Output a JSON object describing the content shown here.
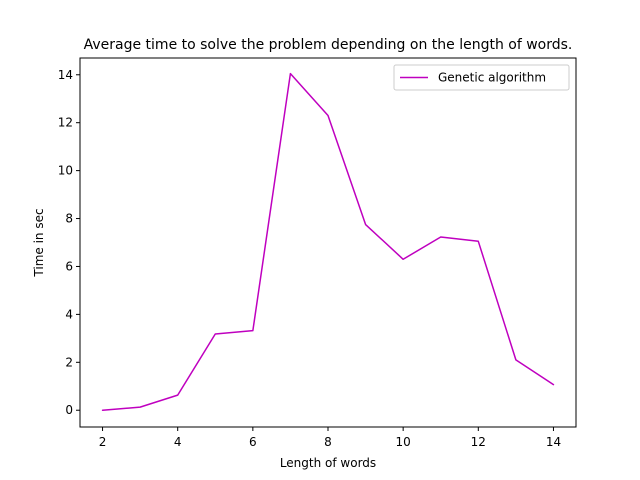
{
  "chart_data": {
    "type": "line",
    "title": "Average time to solve the problem depending on the length of words.",
    "xlabel": "Length of words",
    "ylabel": "Time in sec",
    "xlim": [
      1.4,
      14.6
    ],
    "ylim": [
      -0.7,
      14.7
    ],
    "xticks": [
      2,
      4,
      6,
      8,
      10,
      12,
      14
    ],
    "yticks": [
      0,
      2,
      4,
      6,
      8,
      10,
      12,
      14
    ],
    "grid": false,
    "legend_position": "top-right",
    "series": [
      {
        "name": "Genetic algorithm",
        "color": "#bf00bf",
        "x": [
          2,
          3,
          4,
          5,
          6,
          7,
          8,
          9,
          10,
          11,
          12,
          13,
          14
        ],
        "y": [
          0.0,
          0.13,
          0.63,
          3.18,
          3.32,
          14.05,
          12.3,
          7.75,
          6.3,
          7.23,
          7.05,
          2.1,
          1.07
        ]
      }
    ]
  }
}
